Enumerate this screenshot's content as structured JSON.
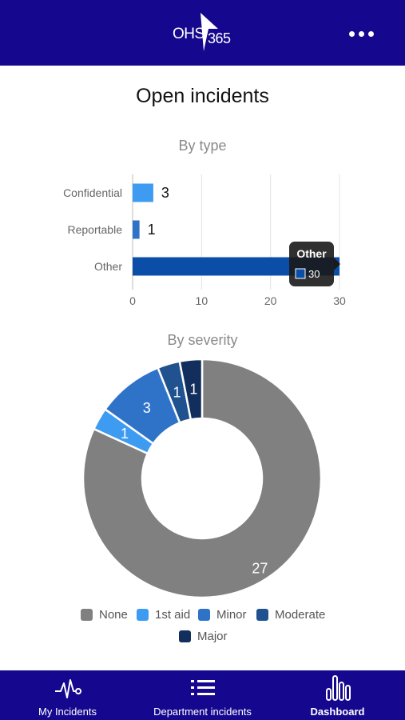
{
  "header": {
    "logo_text_main": "OHS",
    "logo_text_sub": "365",
    "menu_icon": "more-dots-icon"
  },
  "page": {
    "title": "Open incidents"
  },
  "by_type": {
    "subtitle": "By type",
    "tooltip": {
      "title": "Other",
      "value": "30"
    }
  },
  "by_severity": {
    "subtitle": "By severity"
  },
  "chart_data": [
    {
      "type": "bar",
      "orientation": "horizontal",
      "title": "By type",
      "categories": [
        "Confidential",
        "Reportable",
        "Other"
      ],
      "values": [
        3,
        1,
        30
      ],
      "colors": [
        "#3e9bf2",
        "#2f73c9",
        "#0b4ea8"
      ],
      "x_ticks": [
        0,
        10,
        20,
        30
      ],
      "xlim": [
        0,
        30
      ],
      "grid": true,
      "data_labels": [
        "3",
        "1",
        ""
      ]
    },
    {
      "type": "pie",
      "variant": "donut",
      "title": "By severity",
      "categories": [
        "None",
        "1st aid",
        "Minor",
        "Moderate",
        "Major"
      ],
      "values": [
        27,
        1,
        3,
        1,
        1
      ],
      "colors": [
        "#808080",
        "#3e9bf2",
        "#2f73c9",
        "#20528f",
        "#122e5c"
      ],
      "data_labels": [
        "27",
        "1",
        "3",
        "1",
        "1"
      ],
      "legend_position": "bottom"
    }
  ],
  "tabbar": {
    "tabs": [
      {
        "label": "My Incidents",
        "icon": "heartbeat-icon",
        "active": false
      },
      {
        "label": "Department incidents",
        "icon": "list-icon",
        "active": false
      },
      {
        "label": "Dashboard",
        "icon": "bar-chart-icon",
        "active": true
      }
    ]
  }
}
